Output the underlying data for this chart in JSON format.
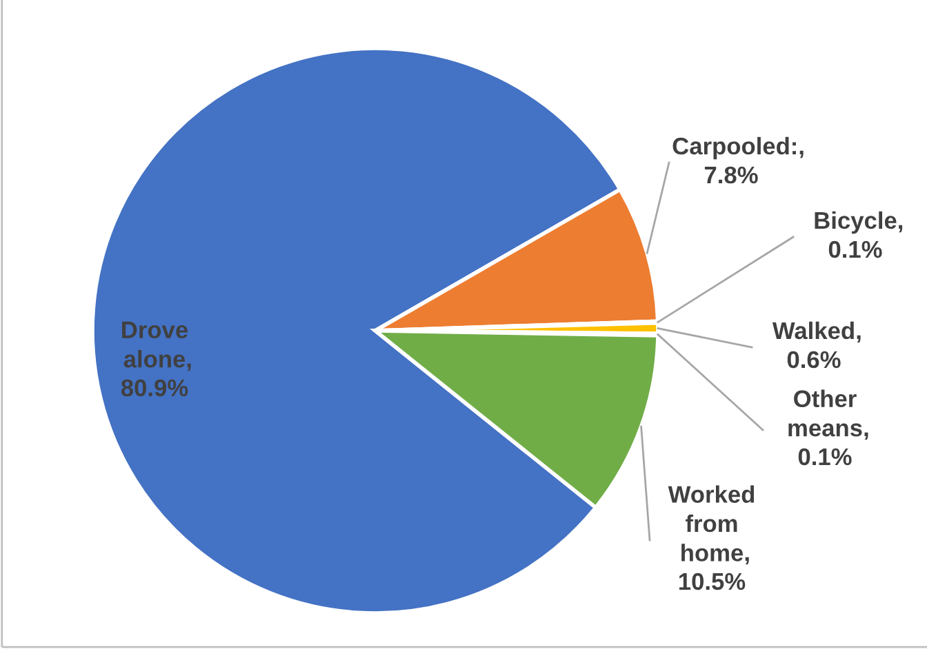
{
  "chart_data": {
    "type": "pie",
    "categories": [
      "Drove alone",
      "Carpooled",
      "Bicycle",
      "Walked",
      "Other means",
      "Worked from home"
    ],
    "value_labels": [
      ", 80.9%",
      ":, 7.8%",
      ", 0.1%",
      ", 0.6%",
      ", 0.1%",
      ", 10.5%"
    ],
    "values": [
      80.9,
      7.8,
      0.1,
      0.6,
      0.1,
      10.5
    ],
    "colors": [
      "#4472c4",
      "#ed7d31",
      "#a5a5a5",
      "#ffc000",
      "#5b9bd5",
      "#70ad47"
    ],
    "legend": false
  }
}
